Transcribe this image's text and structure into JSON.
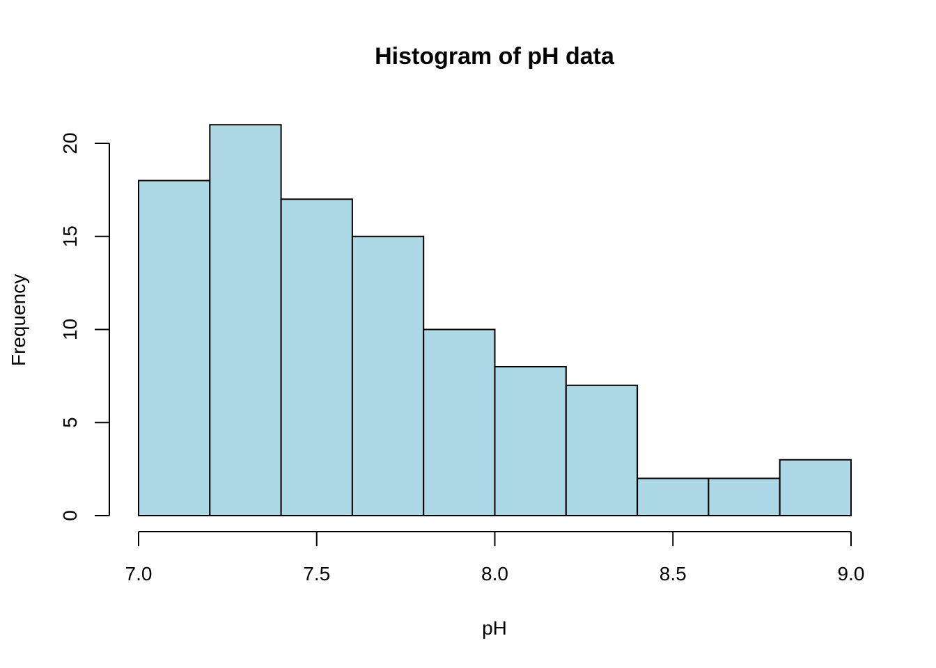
{
  "chart_data": {
    "type": "bar",
    "title": "Histogram of pH data",
    "xlabel": "pH",
    "ylabel": "Frequency",
    "bin_edges": [
      7.0,
      7.2,
      7.4,
      7.6,
      7.8,
      8.0,
      8.2,
      8.4,
      8.6,
      8.8,
      9.0
    ],
    "values": [
      18,
      21,
      17,
      15,
      10,
      8,
      7,
      2,
      2,
      3
    ],
    "xlim": [
      7.0,
      9.0
    ],
    "ylim": [
      0,
      21
    ],
    "x_ticks": [
      7.0,
      7.5,
      8.0,
      8.5,
      9.0
    ],
    "x_tick_labels": [
      "7.0",
      "7.5",
      "8.0",
      "8.5",
      "9.0"
    ],
    "y_ticks": [
      0,
      5,
      10,
      15,
      20
    ],
    "y_tick_labels": [
      "0",
      "5",
      "10",
      "15",
      "20"
    ],
    "grid": false,
    "bar_color": "#add8e6",
    "edge_color": "#000000"
  }
}
